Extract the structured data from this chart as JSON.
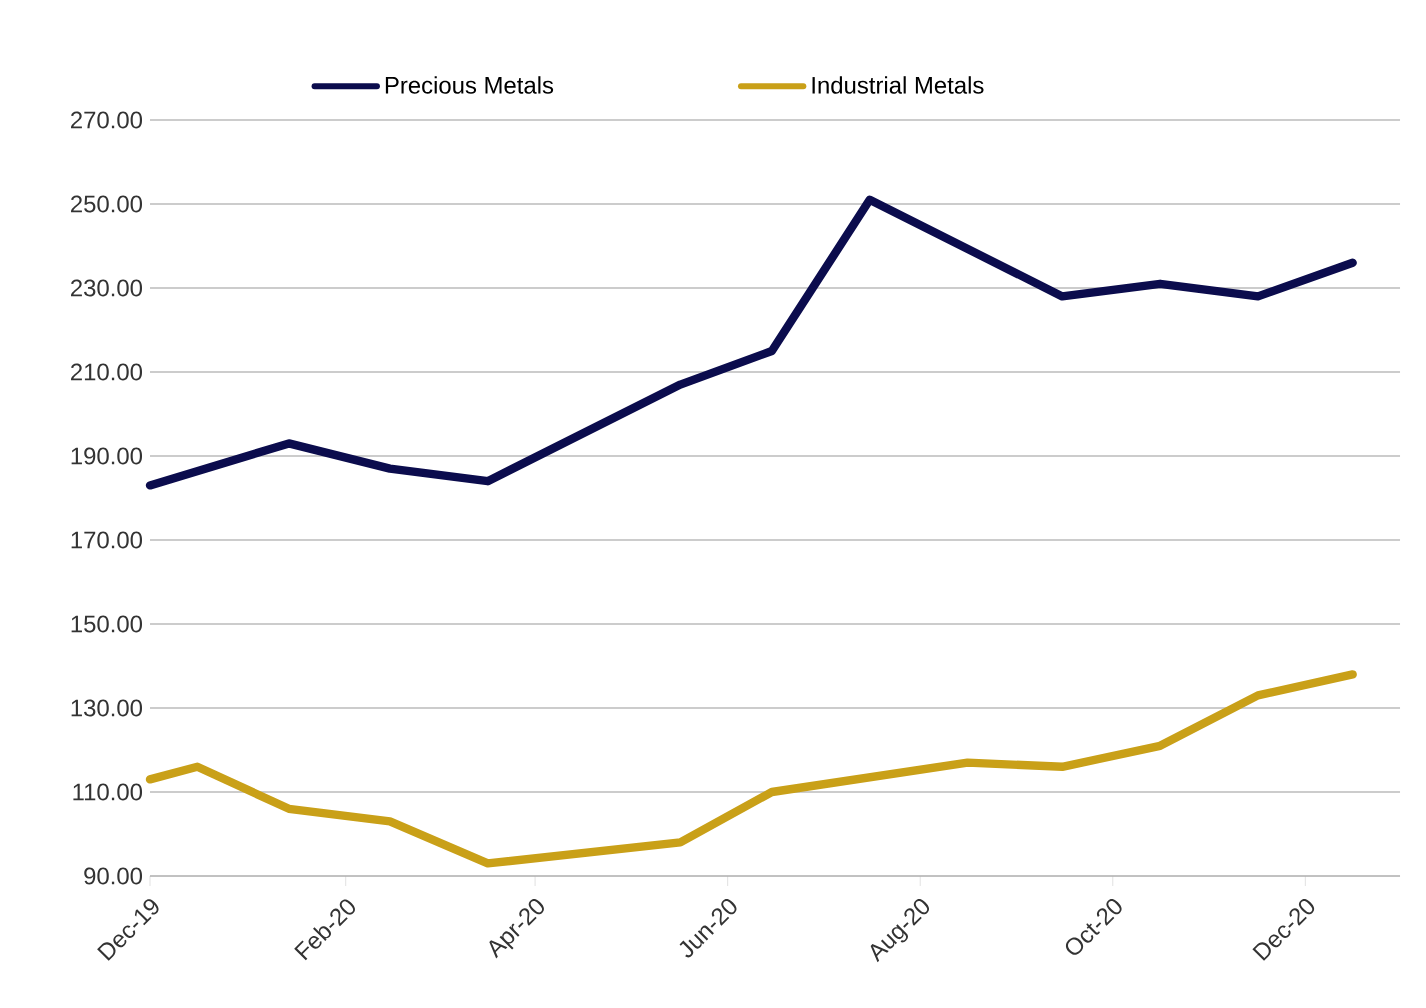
{
  "chart_data": {
    "type": "line",
    "series": [
      {
        "name": "Precious Metals",
        "color": "#0b0c4d",
        "x": [
          "2019-12-01",
          "2020-01-14",
          "2020-02-15",
          "2020-03-17",
          "2020-05-17",
          "2020-06-15",
          "2020-07-16",
          "2020-09-15",
          "2020-10-16",
          "2020-11-16",
          "2020-12-16"
        ],
        "values": [
          183,
          193,
          187,
          184,
          207,
          215,
          251,
          228,
          231,
          228,
          236
        ]
      },
      {
        "name": "Industrial Metals",
        "color": "#c9a018",
        "x": [
          "2019-12-01",
          "2019-12-16",
          "2020-01-14",
          "2020-02-15",
          "2020-03-17",
          "2020-05-17",
          "2020-06-15",
          "2020-08-16",
          "2020-09-15",
          "2020-10-16",
          "2020-11-16",
          "2020-12-16"
        ],
        "values": [
          113,
          116,
          106,
          103,
          93,
          98,
          110,
          117,
          116,
          121,
          133,
          138
        ]
      }
    ],
    "xlim": [
      "2019-12-01",
      "2020-12-31"
    ],
    "xticks": [
      {
        "value": "2019-12-01",
        "label": "Dec-19"
      },
      {
        "value": "2020-02-01",
        "label": "Feb-20"
      },
      {
        "value": "2020-04-01",
        "label": "Apr-20"
      },
      {
        "value": "2020-06-01",
        "label": "Jun-20"
      },
      {
        "value": "2020-08-01",
        "label": "Aug-20"
      },
      {
        "value": "2020-10-01",
        "label": "Oct-20"
      },
      {
        "value": "2020-12-01",
        "label": "Dec-20"
      }
    ],
    "ylim": [
      90,
      270
    ],
    "yticks": [
      {
        "value": 90,
        "label": "90.00"
      },
      {
        "value": 110,
        "label": "110.00"
      },
      {
        "value": 130,
        "label": "130.00"
      },
      {
        "value": 150,
        "label": "150.00"
      },
      {
        "value": 170,
        "label": "170.00"
      },
      {
        "value": 190,
        "label": "190.00"
      },
      {
        "value": 210,
        "label": "210.00"
      },
      {
        "value": 230,
        "label": "230.00"
      },
      {
        "value": 250,
        "label": "250.00"
      },
      {
        "value": 270,
        "label": "270.00"
      }
    ],
    "grid": "y",
    "legend": "top",
    "marker": "none",
    "line_style": "solid"
  }
}
